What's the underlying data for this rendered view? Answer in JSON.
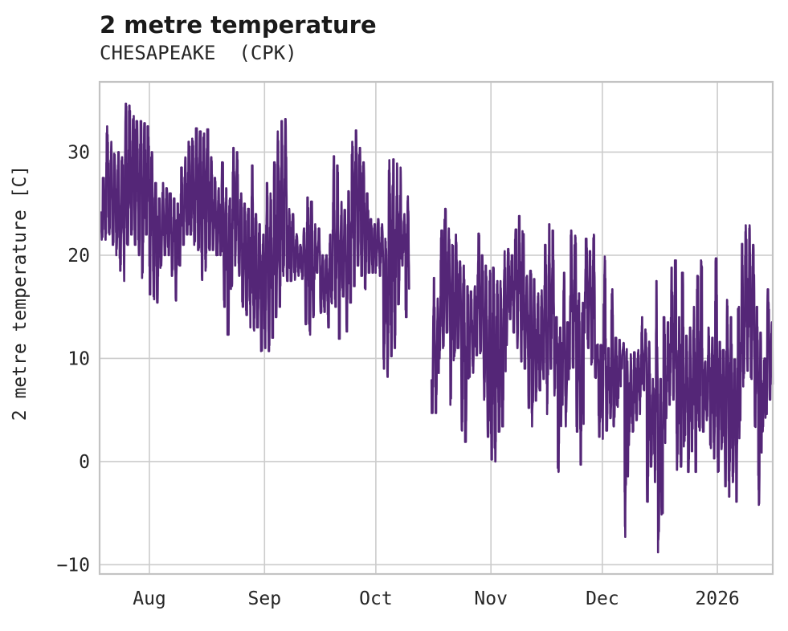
{
  "header": {
    "title": "2 metre temperature",
    "subtitle": "CHESAPEAKE  (CPK)"
  },
  "chart_data": {
    "type": "line",
    "title": "2 metre temperature",
    "station": "CHESAPEAKE (CPK)",
    "ylabel": "2 metre temperature [C]",
    "xlabel": "",
    "grid": true,
    "legend": false,
    "ylim": [
      -10.9,
      36.8
    ],
    "y_ticks": [
      30,
      20,
      10,
      0,
      -10
    ],
    "y_tick_labels": [
      "30",
      "20",
      "10",
      "0",
      "−10"
    ],
    "x_start_date": "2025-07-19",
    "xlim_days": [
      -0.41,
      180.9
    ],
    "x_ticks": [
      {
        "label": "Aug",
        "day": 13
      },
      {
        "label": "Sep",
        "day": 44
      },
      {
        "label": "Oct",
        "day": 74
      },
      {
        "label": "Nov",
        "day": 105
      },
      {
        "label": "Dec",
        "day": 135
      },
      {
        "label": "2026",
        "day": 166
      }
    ],
    "colors": {
      "line": "#542677",
      "grid": "#cccccc",
      "spine": "#c3c3c3",
      "text": "#262626"
    },
    "series": [
      {
        "name": "2 metre temperature",
        "color": "#542677",
        "sampling": "hourly values synthesized between observed daily min/max; null = data gap (Oct 10-15)",
        "daily_min_max": [
          [
            21.5,
            27.5
          ],
          [
            21.5,
            32.5
          ],
          [
            22,
            31
          ],
          [
            21,
            30
          ],
          [
            20,
            30
          ],
          [
            18.5,
            29.5
          ],
          [
            17.5,
            34.7
          ],
          [
            21,
            34.5
          ],
          [
            22,
            33.5
          ],
          [
            21,
            33
          ],
          [
            20,
            33
          ],
          [
            17.8,
            32.8
          ],
          [
            22,
            32.5
          ],
          [
            16.2,
            30
          ],
          [
            14.9,
            27
          ],
          [
            15.4,
            25.5
          ],
          [
            19,
            27
          ],
          [
            20,
            26.5
          ],
          [
            20,
            26
          ],
          [
            18,
            25.5
          ],
          [
            15.6,
            25
          ],
          [
            19,
            28.5
          ],
          [
            21,
            29.5
          ],
          [
            22,
            31
          ],
          [
            22,
            31.3
          ],
          [
            21,
            32.3
          ],
          [
            20.5,
            32
          ],
          [
            17.6,
            31.8
          ],
          [
            18.5,
            32.2
          ],
          [
            20.5,
            29.5
          ],
          [
            20.5,
            27.5
          ],
          [
            20,
            26.5
          ],
          [
            20,
            29
          ],
          [
            15,
            26.5
          ],
          [
            12.3,
            25.5
          ],
          [
            17,
            30.4
          ],
          [
            19,
            30
          ],
          [
            18,
            26
          ],
          [
            15,
            25
          ],
          [
            14.2,
            24.5
          ],
          [
            13,
            28.7
          ],
          [
            12.3,
            24
          ],
          [
            13,
            23
          ],
          [
            10.7,
            22
          ],
          [
            11,
            27
          ],
          [
            10.7,
            26
          ],
          [
            12,
            29
          ],
          [
            14,
            32
          ],
          [
            15,
            33
          ],
          [
            18,
            33.2
          ],
          [
            17.5,
            24.5
          ],
          [
            17.5,
            24
          ],
          [
            17.5,
            23
          ],
          [
            18,
            21
          ],
          [
            17.7,
            22.6
          ],
          [
            13.3,
            25.6
          ],
          [
            12.3,
            25.2
          ],
          [
            14,
            23
          ],
          [
            18.3,
            22.6
          ],
          [
            14.2,
            20
          ],
          [
            14.5,
            20
          ],
          [
            13,
            22
          ],
          [
            15,
            29.6
          ],
          [
            15,
            28.7
          ],
          [
            11.9,
            26
          ],
          [
            16,
            24.4
          ],
          [
            12.6,
            26.2
          ],
          [
            15.4,
            31
          ],
          [
            17,
            32.1
          ],
          [
            19,
            30.4
          ],
          [
            18,
            29
          ],
          [
            16.7,
            26
          ],
          [
            18.3,
            23.5
          ],
          [
            18.3,
            23
          ],
          [
            19,
            23.5
          ],
          [
            18,
            23
          ],
          [
            9,
            21.6
          ],
          [
            8.2,
            29.6
          ],
          [
            10.2,
            29.3
          ],
          [
            11,
            28.9
          ],
          [
            14,
            28.5
          ],
          [
            19,
            24
          ],
          [
            14,
            25.7
          ],
          null,
          null,
          null,
          null,
          null,
          null,
          [
            4.7,
            17.8
          ],
          [
            4.7,
            16
          ],
          [
            10,
            22.4
          ],
          [
            11,
            24.5
          ],
          [
            12.5,
            22.6
          ],
          [
            5.5,
            21
          ],
          [
            10.2,
            22
          ],
          [
            11,
            19.4
          ],
          [
            3,
            19
          ],
          [
            1.9,
            17
          ],
          [
            8.2,
            16.5
          ],
          [
            8.6,
            17
          ],
          [
            10.3,
            22.1
          ],
          [
            10.5,
            20
          ],
          [
            5.9,
            19
          ],
          [
            2.4,
            18.5
          ],
          [
            0.2,
            18.8
          ],
          [
            0,
            17.5
          ],
          [
            2.9,
            17.5
          ],
          [
            3.4,
            20.4
          ],
          [
            11.3,
            20.6
          ],
          [
            13.8,
            20
          ],
          [
            12.5,
            22.5
          ],
          [
            11,
            23.8
          ],
          [
            9.7,
            23.5
          ],
          [
            9,
            18
          ],
          [
            5.2,
            18.5
          ],
          [
            3.4,
            17.7
          ],
          [
            5.9,
            16.3
          ],
          [
            6.9,
            16.6
          ],
          [
            8,
            21
          ],
          [
            4.6,
            23
          ],
          [
            9,
            22.4
          ],
          [
            6.4,
            14
          ],
          [
            -1,
            13
          ],
          [
            5.5,
            18.3
          ],
          [
            3.4,
            13.5
          ],
          [
            9,
            22.4
          ],
          [
            9.1,
            21.9
          ],
          [
            2.9,
            16.3
          ],
          [
            -0.3,
            15.4
          ],
          [
            12.5,
            21.6
          ],
          [
            11,
            20.4
          ],
          [
            9.4,
            22
          ],
          [
            8.1,
            11.6
          ],
          [
            2.4,
            11.3
          ],
          [
            2.2,
            20.6
          ],
          [
            3,
            11
          ],
          [
            4.2,
            16.7
          ],
          [
            3.4,
            12
          ],
          [
            5.2,
            11.8
          ],
          [
            9,
            11.5
          ],
          [
            -7.3,
            10.9
          ],
          [
            1.6,
            10.4
          ],
          [
            2.9,
            10.6
          ],
          [
            4,
            10.8
          ],
          [
            4.6,
            14
          ],
          [
            6.9,
            12.8
          ],
          [
            -3.9,
            12.2
          ],
          [
            -0.5,
            8
          ],
          [
            -2,
            17.5
          ],
          [
            -8.8,
            8
          ],
          [
            -5,
            14
          ],
          [
            4.2,
            13.5
          ],
          [
            5.5,
            18.8
          ],
          [
            6,
            19.5
          ],
          [
            -0.8,
            14
          ],
          [
            -0.5,
            18.3
          ],
          [
            2,
            12.2
          ],
          [
            -1,
            13
          ],
          [
            1,
            15
          ],
          [
            -1,
            18
          ],
          [
            3,
            19.5
          ],
          [
            2.9,
            9.7
          ],
          [
            4,
            13
          ],
          [
            1.3,
            12
          ],
          [
            0.3,
            19.7
          ],
          [
            -1,
            11.6
          ],
          [
            1.2,
            10.8
          ],
          [
            -2.4,
            16.7
          ],
          [
            -3.4,
            14
          ],
          [
            -2,
            9.9
          ],
          [
            -3.9,
            15
          ],
          [
            4,
            21.1
          ],
          [
            8.1,
            22.9
          ],
          [
            8.8,
            22.9
          ],
          [
            8,
            21
          ],
          [
            3.1,
            15
          ],
          [
            -4.2,
            12.5
          ],
          [
            2.9,
            10
          ],
          [
            4.6,
            16.7
          ],
          [
            6,
            13.5
          ]
        ]
      }
    ]
  }
}
